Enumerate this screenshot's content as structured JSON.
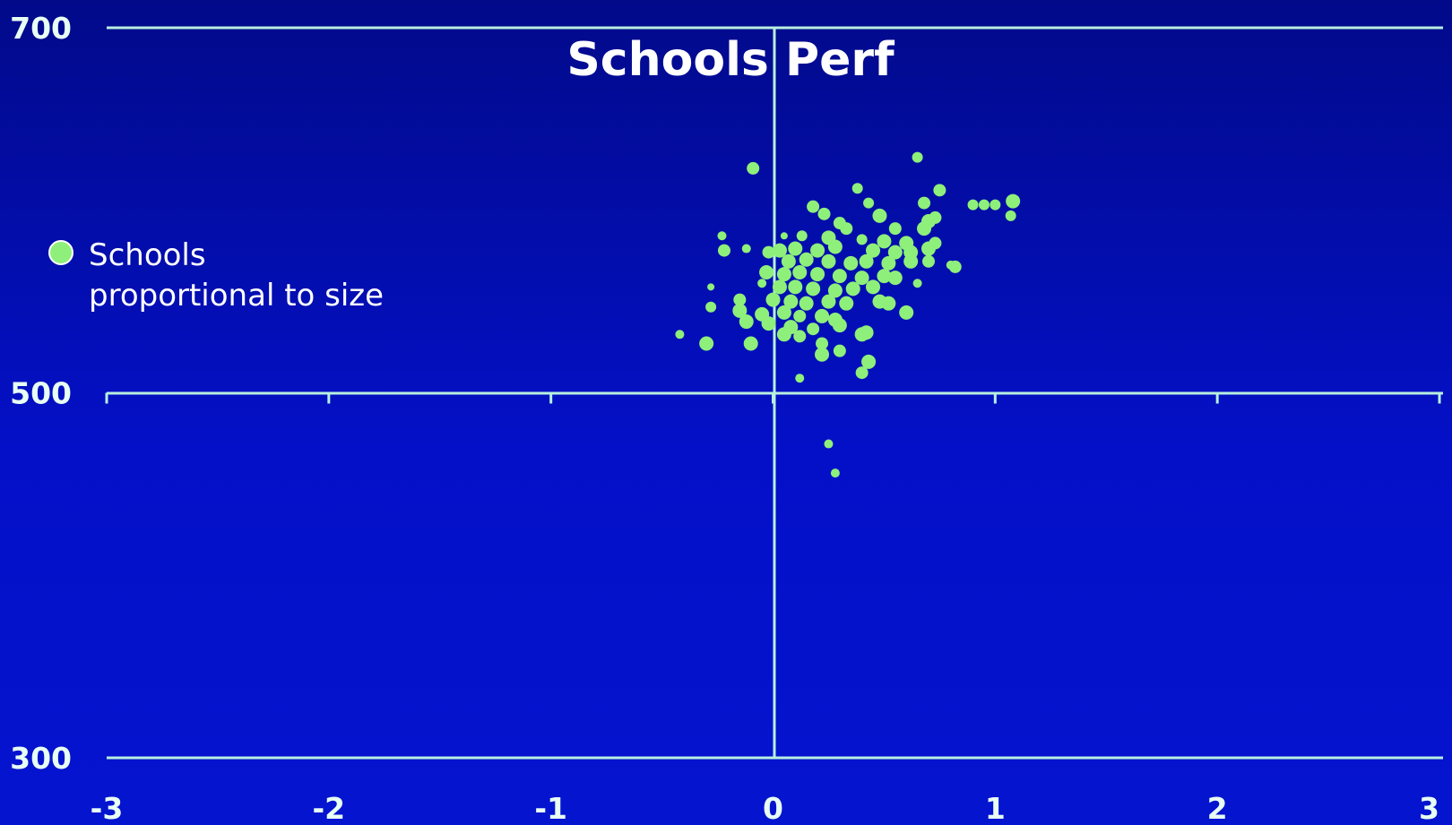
{
  "chart_data": {
    "type": "scatter",
    "title": "Schools Perf",
    "xlabel": "",
    "ylabel": "",
    "xlim": [
      -3,
      3
    ],
    "ylim": [
      300,
      700
    ],
    "x_ticks": [
      "-3",
      "-2",
      "-1",
      "0",
      "1",
      "2",
      "3"
    ],
    "y_ticks": [
      "700",
      "500",
      "300"
    ],
    "reference_lines": {
      "x": 0,
      "y": 500
    },
    "grid": false,
    "legend": {
      "placement": "left",
      "line1": "Schools",
      "line2": "proportional to size"
    },
    "colors": {
      "points": "#8ef07a",
      "axes": "#b8f0e0",
      "background": "#0410c8"
    },
    "points": [
      {
        "x": 0.65,
        "y": 629,
        "size": 6
      },
      {
        "x": -0.09,
        "y": 623,
        "size": 7
      },
      {
        "x": 0.38,
        "y": 612,
        "size": 6
      },
      {
        "x": 0.75,
        "y": 611,
        "size": 7
      },
      {
        "x": 0.43,
        "y": 604,
        "size": 6
      },
      {
        "x": 0.68,
        "y": 604,
        "size": 7
      },
      {
        "x": 0.9,
        "y": 603,
        "size": 6
      },
      {
        "x": 0.95,
        "y": 603,
        "size": 6
      },
      {
        "x": 1.0,
        "y": 603,
        "size": 6
      },
      {
        "x": 1.08,
        "y": 605,
        "size": 8
      },
      {
        "x": 1.07,
        "y": 597,
        "size": 6
      },
      {
        "x": 0.18,
        "y": 602,
        "size": 7
      },
      {
        "x": 0.23,
        "y": 598,
        "size": 7
      },
      {
        "x": 0.48,
        "y": 597,
        "size": 8
      },
      {
        "x": 0.7,
        "y": 594,
        "size": 8
      },
      {
        "x": 0.73,
        "y": 596,
        "size": 7
      },
      {
        "x": 0.3,
        "y": 593,
        "size": 7
      },
      {
        "x": 0.33,
        "y": 590,
        "size": 7
      },
      {
        "x": 0.55,
        "y": 590,
        "size": 7
      },
      {
        "x": 0.68,
        "y": 590,
        "size": 8
      },
      {
        "x": -0.23,
        "y": 586,
        "size": 5
      },
      {
        "x": 0.05,
        "y": 586,
        "size": 4
      },
      {
        "x": 0.13,
        "y": 586,
        "size": 6
      },
      {
        "x": 0.25,
        "y": 585,
        "size": 8
      },
      {
        "x": 0.4,
        "y": 584,
        "size": 6
      },
      {
        "x": 0.5,
        "y": 583,
        "size": 8
      },
      {
        "x": 0.6,
        "y": 582,
        "size": 8
      },
      {
        "x": 0.73,
        "y": 582,
        "size": 7
      },
      {
        "x": -0.22,
        "y": 578,
        "size": 7
      },
      {
        "x": -0.12,
        "y": 579,
        "size": 5
      },
      {
        "x": -0.02,
        "y": 577,
        "size": 7
      },
      {
        "x": 0.03,
        "y": 578,
        "size": 8
      },
      {
        "x": 0.1,
        "y": 579,
        "size": 8
      },
      {
        "x": 0.2,
        "y": 578,
        "size": 8
      },
      {
        "x": 0.28,
        "y": 580,
        "size": 8
      },
      {
        "x": 0.45,
        "y": 578,
        "size": 8
      },
      {
        "x": 0.55,
        "y": 577,
        "size": 8
      },
      {
        "x": 0.62,
        "y": 577,
        "size": 8
      },
      {
        "x": 0.7,
        "y": 579,
        "size": 8
      },
      {
        "x": 0.07,
        "y": 572,
        "size": 8
      },
      {
        "x": 0.15,
        "y": 573,
        "size": 8
      },
      {
        "x": 0.25,
        "y": 572,
        "size": 8
      },
      {
        "x": 0.35,
        "y": 571,
        "size": 8
      },
      {
        "x": 0.42,
        "y": 572,
        "size": 8
      },
      {
        "x": 0.52,
        "y": 571,
        "size": 8
      },
      {
        "x": 0.62,
        "y": 572,
        "size": 8
      },
      {
        "x": 0.7,
        "y": 572,
        "size": 7
      },
      {
        "x": 0.8,
        "y": 570,
        "size": 5
      },
      {
        "x": 0.82,
        "y": 569,
        "size": 7
      },
      {
        "x": -0.03,
        "y": 566,
        "size": 8
      },
      {
        "x": 0.05,
        "y": 565,
        "size": 8
      },
      {
        "x": 0.12,
        "y": 566,
        "size": 8
      },
      {
        "x": 0.2,
        "y": 565,
        "size": 8
      },
      {
        "x": 0.3,
        "y": 564,
        "size": 8
      },
      {
        "x": 0.4,
        "y": 563,
        "size": 8
      },
      {
        "x": 0.5,
        "y": 564,
        "size": 8
      },
      {
        "x": 0.55,
        "y": 563,
        "size": 8
      },
      {
        "x": 0.03,
        "y": 558,
        "size": 8
      },
      {
        "x": 0.1,
        "y": 558,
        "size": 8
      },
      {
        "x": 0.18,
        "y": 557,
        "size": 8
      },
      {
        "x": 0.28,
        "y": 556,
        "size": 8
      },
      {
        "x": 0.36,
        "y": 557,
        "size": 8
      },
      {
        "x": 0.45,
        "y": 558,
        "size": 8
      },
      {
        "x": -0.05,
        "y": 560,
        "size": 5
      },
      {
        "x": 0.65,
        "y": 560,
        "size": 5
      },
      {
        "x": -0.28,
        "y": 558,
        "size": 4
      },
      {
        "x": 0.0,
        "y": 551,
        "size": 8
      },
      {
        "x": 0.08,
        "y": 550,
        "size": 8
      },
      {
        "x": 0.15,
        "y": 549,
        "size": 8
      },
      {
        "x": 0.25,
        "y": 550,
        "size": 8
      },
      {
        "x": 0.33,
        "y": 549,
        "size": 8
      },
      {
        "x": -0.15,
        "y": 551,
        "size": 7
      },
      {
        "x": 0.48,
        "y": 550,
        "size": 8
      },
      {
        "x": 0.52,
        "y": 549,
        "size": 8
      },
      {
        "x": -0.28,
        "y": 547,
        "size": 6
      },
      {
        "x": -0.15,
        "y": 545,
        "size": 8
      },
      {
        "x": -0.05,
        "y": 543,
        "size": 8
      },
      {
        "x": 0.05,
        "y": 544,
        "size": 8
      },
      {
        "x": 0.12,
        "y": 542,
        "size": 7
      },
      {
        "x": 0.22,
        "y": 542,
        "size": 8
      },
      {
        "x": 0.28,
        "y": 540,
        "size": 8
      },
      {
        "x": 0.6,
        "y": 544,
        "size": 8
      },
      {
        "x": -0.12,
        "y": 539,
        "size": 8
      },
      {
        "x": -0.02,
        "y": 538,
        "size": 8
      },
      {
        "x": 0.08,
        "y": 536,
        "size": 8
      },
      {
        "x": 0.18,
        "y": 535,
        "size": 7
      },
      {
        "x": 0.3,
        "y": 537,
        "size": 8
      },
      {
        "x": -0.42,
        "y": 532,
        "size": 5
      },
      {
        "x": 0.05,
        "y": 532,
        "size": 8
      },
      {
        "x": 0.12,
        "y": 531,
        "size": 7
      },
      {
        "x": 0.4,
        "y": 532,
        "size": 8
      },
      {
        "x": 0.42,
        "y": 533,
        "size": 8
      },
      {
        "x": -0.3,
        "y": 527,
        "size": 8
      },
      {
        "x": -0.1,
        "y": 527,
        "size": 8
      },
      {
        "x": 0.22,
        "y": 527,
        "size": 7
      },
      {
        "x": 0.3,
        "y": 523,
        "size": 7
      },
      {
        "x": 0.22,
        "y": 521,
        "size": 8
      },
      {
        "x": 0.43,
        "y": 517,
        "size": 8
      },
      {
        "x": 0.4,
        "y": 511,
        "size": 7
      },
      {
        "x": 0.12,
        "y": 508,
        "size": 5
      },
      {
        "x": 0.25,
        "y": 472,
        "size": 5
      },
      {
        "x": 0.28,
        "y": 456,
        "size": 5
      }
    ]
  }
}
